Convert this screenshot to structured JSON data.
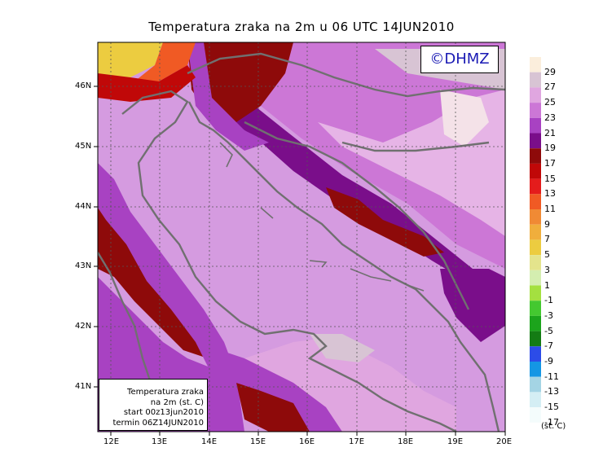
{
  "title": "Temperatura zraka na 2m u 06 UTC 14JUN2010",
  "logo": "©DHMZ",
  "info_box": {
    "line1": "Temperatura zraka",
    "line2": "na 2m (st. C)",
    "line3": "start 00z13jun2010",
    "line4": "termin 06Z14JUN2010"
  },
  "axes": {
    "lon_labels": [
      "12E",
      "13E",
      "14E",
      "15E",
      "16E",
      "17E",
      "18E",
      "19E",
      "20E"
    ],
    "lat_labels": [
      "46N",
      "45N",
      "44N",
      "43N",
      "42N",
      "41N"
    ]
  },
  "legend": {
    "unit": "(st. C)",
    "labels": [
      "29",
      "27",
      "25",
      "23",
      "21",
      "19",
      "17",
      "15",
      "13",
      "11",
      "9",
      "7",
      "5",
      "3",
      "1",
      "-1",
      "-3",
      "-5",
      "-7",
      "-9",
      "-11",
      "-13",
      "-15",
      "-17"
    ],
    "colors": [
      "#fbeedc",
      "#d8c4d4",
      "#e0a6e0",
      "#cc77d6",
      "#a842c2",
      "#7a0e8a",
      "#8e0a0a",
      "#c00808",
      "#e41c1c",
      "#f05a24",
      "#f08a34",
      "#f0ae3c",
      "#eccc40",
      "#e4e48c",
      "#d4eeb0",
      "#a4e040",
      "#44c830",
      "#1ca41c",
      "#147c14",
      "#2c4ce8",
      "#1496e4",
      "#a4d4e4",
      "#d4eef4",
      "#f4fcfc"
    ]
  },
  "colors": {
    "land_base": "#d59be0",
    "sea": "#d59be0",
    "coast": "#707070"
  }
}
